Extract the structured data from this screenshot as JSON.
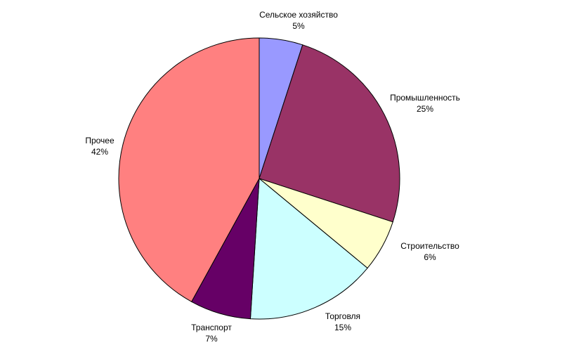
{
  "chart_data": {
    "type": "pie",
    "title": "",
    "start_angle_deg": 0,
    "direction": "clockwise",
    "legend": "none",
    "slices": [
      {
        "label": "Сельское хозяйство",
        "value": 5,
        "value_label": "5%",
        "color": "#9999FF"
      },
      {
        "label": "Промышленность",
        "value": 25,
        "value_label": "25%",
        "color": "#993366"
      },
      {
        "label": "Строительство",
        "value": 6,
        "value_label": "6%",
        "color": "#FFFFCC"
      },
      {
        "label": "Торговля",
        "value": 15,
        "value_label": "15%",
        "color": "#CCFFFF"
      },
      {
        "label": "Транспорт",
        "value": 7,
        "value_label": "7%",
        "color": "#660066"
      },
      {
        "label": "Прочее",
        "value": 42,
        "value_label": "42%",
        "color": "#FF8080"
      }
    ]
  }
}
